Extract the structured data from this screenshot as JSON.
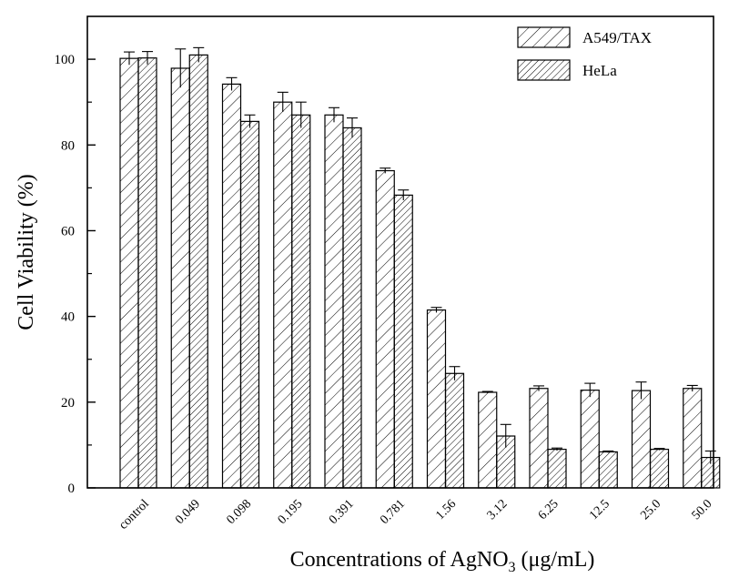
{
  "chart_data": {
    "type": "bar",
    "title": "",
    "xlabel": {
      "prefix": "Concentrations of AgNO",
      "subscript": "3",
      "suffix": " (μg/mL)"
    },
    "ylabel": "Cell Viability (%)",
    "ylim": [
      0,
      110
    ],
    "yticks": [
      0,
      20,
      40,
      60,
      80,
      100
    ],
    "grid": false,
    "legend_position": "top-right",
    "categories": [
      "control",
      "0.049",
      "0.098",
      "0.195",
      "0.391",
      "0.781",
      "1.56",
      "3.12",
      "6.25",
      "12.5",
      "25.0",
      "50.0"
    ],
    "series": [
      {
        "name": "A549/TAX",
        "hatch": "sparse",
        "values": [
          100.2,
          97.9,
          94.2,
          90.0,
          87.0,
          74.0,
          41.5,
          22.3,
          23.2,
          22.8,
          22.7,
          23.2
        ],
        "errors": [
          1.5,
          4.5,
          1.5,
          2.3,
          1.7,
          0.6,
          0.6,
          0.2,
          0.6,
          1.6,
          2.0,
          0.7
        ]
      },
      {
        "name": "HeLa",
        "hatch": "dense",
        "values": [
          100.3,
          101.0,
          85.5,
          87.0,
          84.0,
          68.3,
          26.7,
          12.1,
          9.0,
          8.4,
          9.0,
          7.1
        ],
        "errors": [
          1.5,
          1.7,
          1.5,
          3.0,
          2.3,
          1.2,
          1.6,
          2.7,
          0.3,
          0.2,
          0.2,
          1.5
        ]
      }
    ]
  }
}
